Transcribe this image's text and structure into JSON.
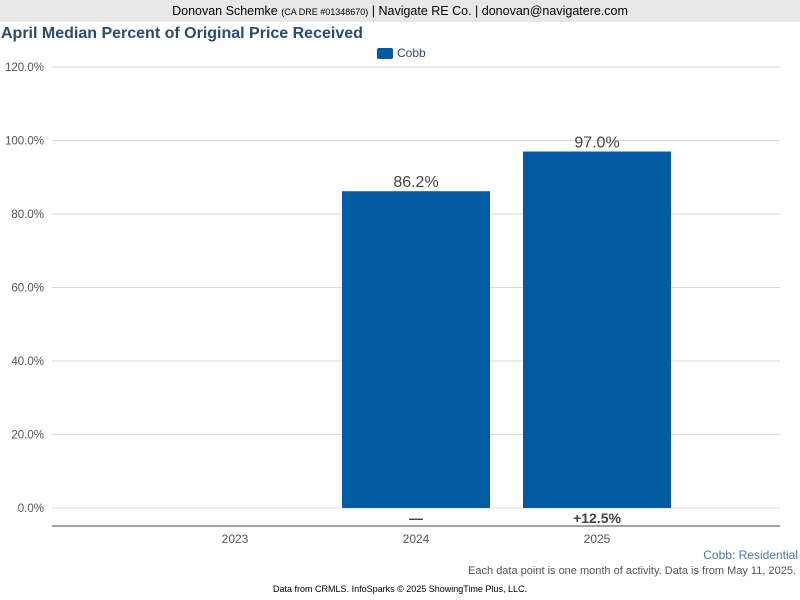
{
  "header": {
    "name": "Donovan Schemke",
    "license": "(CA DRE #01348670)",
    "company": "| Navigate RE Co. |",
    "email": "donovan@navigatere.com"
  },
  "footer": {
    "caption": "Cobb: Residential",
    "note": "Each data point is one month of activity. Data is from May 11, 2025.",
    "source": "Data from CRMLS. InfoSparks © 2025 ShowingTime Plus, LLC."
  },
  "chart_data": {
    "type": "bar",
    "title": "April Median Percent of Original Price Received",
    "categories": [
      "2023",
      "2024",
      "2025"
    ],
    "series": [
      {
        "name": "Cobb",
        "values": [
          null,
          86.2,
          97.0
        ],
        "labels": [
          "",
          "86.2%",
          "97.0%"
        ],
        "change_labels": [
          "",
          "—",
          "+12.5%"
        ]
      }
    ],
    "ylim": [
      0,
      120
    ],
    "yticks": [
      0,
      20,
      40,
      60,
      80,
      100,
      120
    ],
    "ytick_labels": [
      "0.0%",
      "20.0%",
      "40.0%",
      "60.0%",
      "80.0%",
      "100.0%",
      "120.0%"
    ],
    "grid": true,
    "legend": "top-center",
    "colors": {
      "bar": "#005ba2",
      "grid": "#d9d9d9",
      "axis": "#555555",
      "title": "#2a4b6e"
    }
  }
}
